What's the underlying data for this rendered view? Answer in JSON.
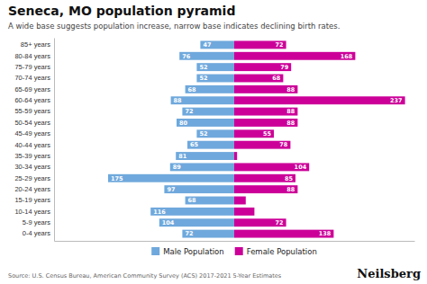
{
  "chart_data": {
    "type": "bar",
    "orientation": "horizontal",
    "title": "Seneca, MO population pyramid",
    "subtitle": "A wide base suggests population increase, narrow base indicates declining birth rates.",
    "annotations": [
      "Source: U.S. Census Bureau, American Community Survey (ACS) 2017-2021 5-Year Estimates",
      "Neilsberg"
    ],
    "categories": [
      "85+ years",
      "80-84 years",
      "75-79 years",
      "70-74 years",
      "65-69 years",
      "60-64 years",
      "55-59 years",
      "50-54 years",
      "45-49 years",
      "40-44 years",
      "35-39 years",
      "30-34 years",
      "25-29 years",
      "20-24 years",
      "15-19 years",
      "10-14 years",
      "5-9 years",
      "0-4 years"
    ],
    "series": [
      {
        "name": "Male Population",
        "color": "#6fa8dc",
        "values": [
          47,
          76,
          52,
          52,
          68,
          88,
          72,
          80,
          52,
          65,
          81,
          89,
          175,
          97,
          68,
          116,
          104,
          72
        ],
        "value_labels": [
          "47",
          "76",
          "52",
          "52",
          "68",
          "88",
          "72",
          "80",
          "52",
          "65",
          "81",
          "89",
          "175",
          "97",
          "68",
          "116",
          "104",
          "72"
        ]
      },
      {
        "name": "Female Population",
        "color": "#cc0099",
        "values": [
          72,
          168,
          79,
          68,
          88,
          237,
          88,
          88,
          55,
          78,
          4,
          104,
          85,
          88,
          16,
          28,
          72,
          138
        ],
        "value_labels": [
          "72",
          "168",
          "79",
          "68",
          "88",
          "237",
          "88",
          "88",
          "55",
          "78",
          null,
          "104",
          "85",
          "88",
          null,
          null,
          "72",
          "138"
        ]
      }
    ],
    "xlim": [
      -250,
      250
    ],
    "tick_labels": "y",
    "data_labels": true,
    "legend": "bottom",
    "grid": false
  }
}
